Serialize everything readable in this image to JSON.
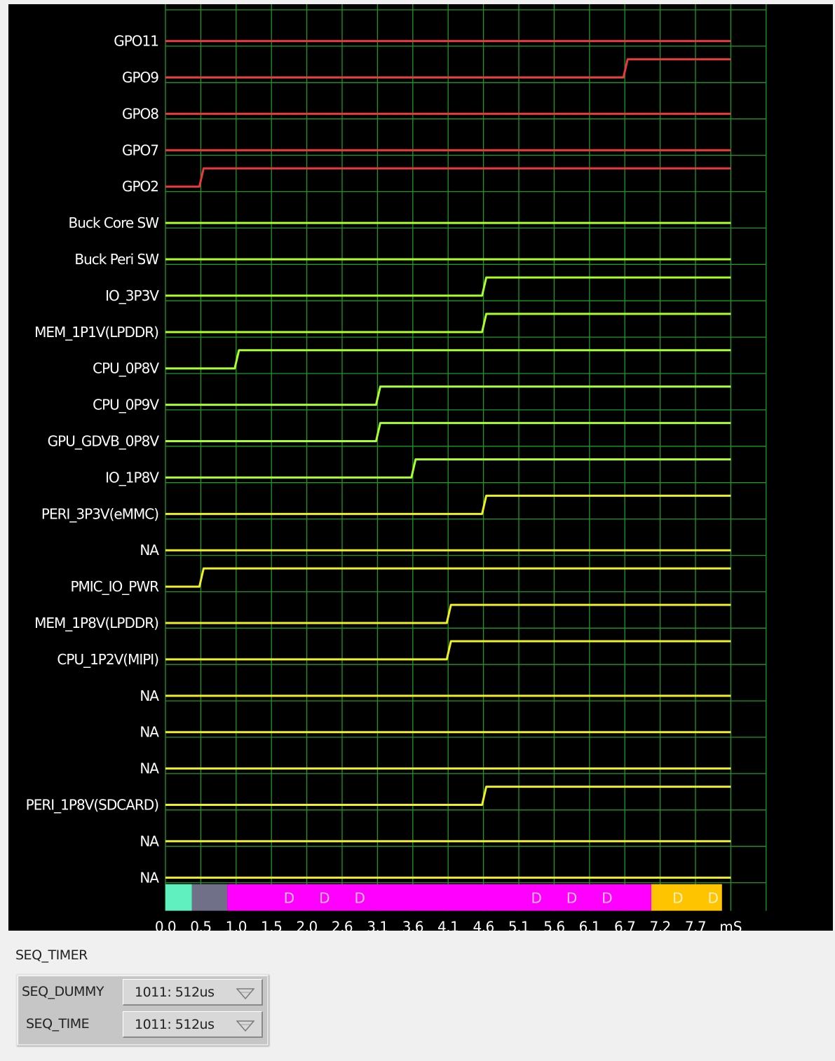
{
  "chart_data": {
    "type": "line",
    "subtype": "power-sequence timing diagram",
    "x_unit": "mS",
    "x_ticks": [
      "0.0",
      "0.5",
      "1.0",
      "1.5",
      "2.0",
      "2.6",
      "3.1",
      "3.6",
      "4.1",
      "4.6",
      "5.1",
      "5.6",
      "6.1",
      "6.7",
      "7.2",
      "7.7"
    ],
    "grid": true,
    "colors": {
      "gpo": "#e83a3a",
      "green_rail": "#aaff2a",
      "yellow_rail": "#f0f020",
      "grid": "#1f9a1f"
    },
    "series": [
      {
        "name": "GPO11",
        "color": "#e83a3a",
        "rise_slot": null
      },
      {
        "name": "GPO9",
        "color": "#e83a3a",
        "rise_slot": 13
      },
      {
        "name": "GPO8",
        "color": "#e83a3a",
        "rise_slot": null
      },
      {
        "name": "GPO7",
        "color": "#e83a3a",
        "rise_slot": null
      },
      {
        "name": "GPO2",
        "color": "#e83a3a",
        "rise_slot": 1
      },
      {
        "name": "Buck Core SW",
        "color": "#aaff2a",
        "rise_slot": null
      },
      {
        "name": "Buck Peri SW",
        "color": "#aaff2a",
        "rise_slot": null
      },
      {
        "name": "IO_3P3V",
        "color": "#aaff2a",
        "rise_slot": 9
      },
      {
        "name": "MEM_1P1V(LPDDR)",
        "color": "#aaff2a",
        "rise_slot": 9
      },
      {
        "name": "CPU_0P8V",
        "color": "#aaff2a",
        "rise_slot": 2
      },
      {
        "name": "CPU_0P9V",
        "color": "#aaff2a",
        "rise_slot": 6
      },
      {
        "name": "GPU_GDVB_0P8V",
        "color": "#aaff2a",
        "rise_slot": 6
      },
      {
        "name": "IO_1P8V",
        "color": "#aaff2a",
        "rise_slot": 7
      },
      {
        "name": "PERI_3P3V(eMMC)",
        "color": "#f0f020",
        "rise_slot": 9
      },
      {
        "name": "NA",
        "color": "#f0f020",
        "rise_slot": null
      },
      {
        "name": "PMIC_IO_PWR",
        "color": "#f0f020",
        "rise_slot": 1
      },
      {
        "name": "MEM_1P8V(LPDDR)",
        "color": "#f0f020",
        "rise_slot": 8
      },
      {
        "name": "CPU_1P2V(MIPI)",
        "color": "#f0f020",
        "rise_slot": 8
      },
      {
        "name": "NA",
        "color": "#f0f020",
        "rise_slot": null
      },
      {
        "name": "NA",
        "color": "#f0f020",
        "rise_slot": null
      },
      {
        "name": "NA",
        "color": "#f0f020",
        "rise_slot": null
      },
      {
        "name": "PERI_1P8V(SDCARD)",
        "color": "#f0f020",
        "rise_slot": 9
      },
      {
        "name": "NA",
        "color": "#f0f020",
        "rise_slot": null
      },
      {
        "name": "NA",
        "color": "#f0f020",
        "rise_slot": null
      }
    ],
    "phase_bar": [
      {
        "color": "#60f0c0",
        "from_slot": 0.0,
        "to_slot": 0.75,
        "markers": []
      },
      {
        "color": "#707088",
        "from_slot": 0.75,
        "to_slot": 1.75,
        "markers": []
      },
      {
        "color": "#ff00ff",
        "from_slot": 1.75,
        "to_slot": 13.75,
        "markers": [
          3.5,
          4.5,
          5.5,
          10.5,
          11.5,
          12.5
        ]
      },
      {
        "color": "#ffc400",
        "from_slot": 13.75,
        "to_slot": 15.75,
        "markers": [
          14.5,
          15.5
        ]
      }
    ],
    "marker_label": "D"
  },
  "seq_timer": {
    "title": "SEQ_TIMER",
    "rows": [
      {
        "label": "SEQ_DUMMY",
        "value": "1011: 512us"
      },
      {
        "label": "SEQ_TIME",
        "value": "1011: 512us"
      }
    ]
  }
}
